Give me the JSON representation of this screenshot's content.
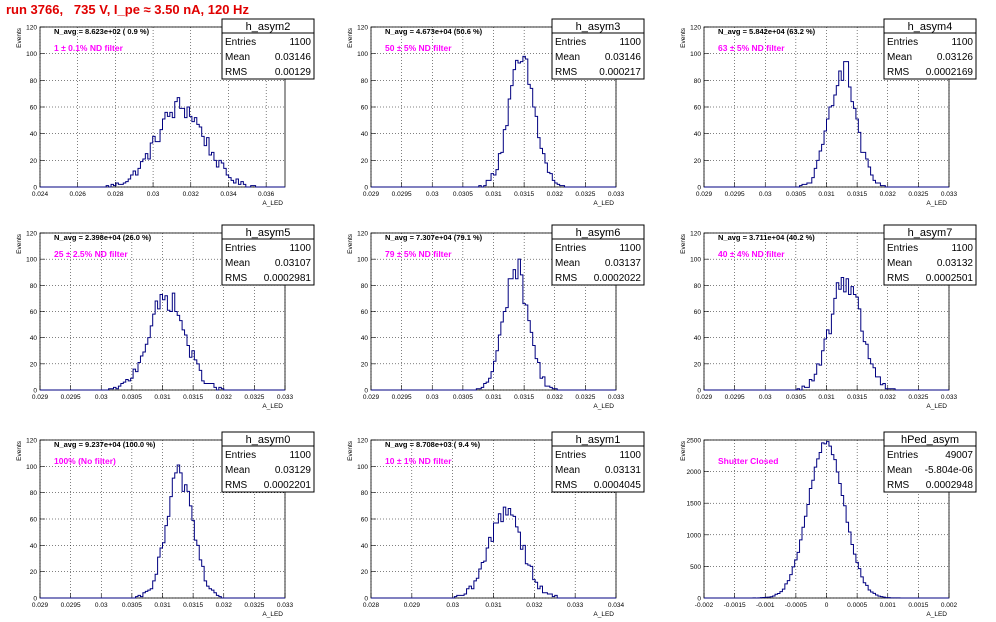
{
  "run_title": "run 3766,   735 V, I_pe ≈ 3.50 nA, 120 Hz",
  "colors": {
    "hist_line": "#000080",
    "magenta": "#ff00ff",
    "title_red": "#e00000",
    "grid": "#000000"
  },
  "common": {
    "ylabel": "Events",
    "xlabel": "A_LED",
    "stats_entries_label": "Entries",
    "stats_mean_label": "Mean",
    "stats_rms_label": "RMS"
  },
  "chart_data": [
    {
      "type": "histogram",
      "hist_name": "h_asym2",
      "navg_text": "N_avg = 8.623e+02 ( 0.9 %)",
      "filter_text": "1 ± 0.1% ND filter",
      "stats": {
        "entries": "1100",
        "mean": "0.03146",
        "rms": "0.00129"
      },
      "xlim": [
        0.024,
        0.037
      ],
      "ylim": [
        0,
        120
      ],
      "xticks": [
        "0.024",
        "0.026",
        "0.028",
        "0.03",
        "0.032",
        "0.034",
        "0.036"
      ],
      "yticks": [
        "0",
        "20",
        "40",
        "60",
        "80",
        "100",
        "120"
      ],
      "shape": {
        "mean": 0.03146,
        "rms": 0.00129,
        "peak": 60
      }
    },
    {
      "type": "histogram",
      "hist_name": "h_asym3",
      "navg_text": "N_avg = 4.673e+04 (50.6 %)",
      "filter_text": "50 ± 5% ND filter",
      "stats": {
        "entries": "1100",
        "mean": "0.03146",
        "rms": "0.000217"
      },
      "xlim": [
        0.029,
        0.033
      ],
      "ylim": [
        0,
        120
      ],
      "xticks": [
        "0.029",
        "0.0295",
        "0.03",
        "0.0305",
        "0.031",
        "0.0315",
        "0.032",
        "0.0325",
        "0.033"
      ],
      "yticks": [
        "0",
        "20",
        "40",
        "60",
        "80",
        "100",
        "120"
      ],
      "shape": {
        "mean": 0.03146,
        "rms": 0.000217,
        "peak": 93
      }
    },
    {
      "type": "histogram",
      "hist_name": "h_asym4",
      "navg_text": "N_avg = 5.842e+04 (63.2 %)",
      "filter_text": "63 ± 5% ND filter",
      "stats": {
        "entries": "1100",
        "mean": "0.03126",
        "rms": "0.0002169"
      },
      "xlim": [
        0.029,
        0.033
      ],
      "ylim": [
        0,
        120
      ],
      "xticks": [
        "0.029",
        "0.0295",
        "0.03",
        "0.0305",
        "0.031",
        "0.0315",
        "0.032",
        "0.0325",
        "0.033"
      ],
      "yticks": [
        "0",
        "20",
        "40",
        "60",
        "80",
        "100",
        "120"
      ],
      "shape": {
        "mean": 0.03126,
        "rms": 0.0002169,
        "peak": 90
      }
    },
    {
      "type": "histogram",
      "hist_name": "h_asym5",
      "navg_text": "N_avg = 2.398e+04 (26.0 %)",
      "filter_text": "25 ± 2.5% ND filter",
      "stats": {
        "entries": "1100",
        "mean": "0.03107",
        "rms": "0.0002981"
      },
      "xlim": [
        0.029,
        0.033
      ],
      "ylim": [
        0,
        120
      ],
      "xticks": [
        "0.029",
        "0.0295",
        "0.03",
        "0.0305",
        "0.031",
        "0.0315",
        "0.032",
        "0.0325",
        "0.033"
      ],
      "yticks": [
        "0",
        "20",
        "40",
        "60",
        "80",
        "100",
        "120"
      ],
      "shape": {
        "mean": 0.03107,
        "rms": 0.0002981,
        "peak": 70
      }
    },
    {
      "type": "histogram",
      "hist_name": "h_asym6",
      "navg_text": "N_avg = 7.307e+04 (79.1 %)",
      "filter_text": "79 ± 5% ND filter",
      "stats": {
        "entries": "1100",
        "mean": "0.03137",
        "rms": "0.0002022"
      },
      "xlim": [
        0.029,
        0.033
      ],
      "ylim": [
        0,
        120
      ],
      "xticks": [
        "0.029",
        "0.0295",
        "0.03",
        "0.0305",
        "0.031",
        "0.0315",
        "0.032",
        "0.0325",
        "0.033"
      ],
      "yticks": [
        "0",
        "20",
        "40",
        "60",
        "80",
        "100",
        "120"
      ],
      "shape": {
        "mean": 0.03137,
        "rms": 0.0002022,
        "peak": 93
      }
    },
    {
      "type": "histogram",
      "hist_name": "h_asym7",
      "navg_text": "N_avg = 3.711e+04 (40.2 %)",
      "filter_text": "40 ± 4% ND filter",
      "stats": {
        "entries": "1100",
        "mean": "0.03132",
        "rms": "0.0002501"
      },
      "xlim": [
        0.029,
        0.033
      ],
      "ylim": [
        0,
        120
      ],
      "xticks": [
        "0.029",
        "0.0295",
        "0.03",
        "0.0305",
        "0.031",
        "0.0315",
        "0.032",
        "0.0325",
        "0.033"
      ],
      "yticks": [
        "0",
        "20",
        "40",
        "60",
        "80",
        "100",
        "120"
      ],
      "shape": {
        "mean": 0.03132,
        "rms": 0.0002501,
        "peak": 85
      }
    },
    {
      "type": "histogram",
      "hist_name": "h_asym0",
      "navg_text": "N_avg = 9.237e+04 (100.0 %)",
      "filter_text": "100% (No filter)",
      "stats": {
        "entries": "1100",
        "mean": "0.03129",
        "rms": "0.0002201"
      },
      "xlim": [
        0.029,
        0.033
      ],
      "ylim": [
        0,
        120
      ],
      "xticks": [
        "0.029",
        "0.0295",
        "0.03",
        "0.0305",
        "0.031",
        "0.0315",
        "0.032",
        "0.0325",
        "0.033"
      ],
      "yticks": [
        "0",
        "20",
        "40",
        "60",
        "80",
        "100",
        "120"
      ],
      "shape": {
        "mean": 0.03129,
        "rms": 0.0002201,
        "peak": 93
      }
    },
    {
      "type": "histogram",
      "hist_name": "h_asym1",
      "navg_text": "N_avg = 8.708e+03 ( 9.4 %)",
      "filter_text": "10 ± 1% ND filter",
      "stats": {
        "entries": "1100",
        "mean": "0.03131",
        "rms": "0.0004045"
      },
      "xlim": [
        0.028,
        0.034
      ],
      "ylim": [
        0,
        120
      ],
      "xticks": [
        "0.028",
        "0.029",
        "0.03",
        "0.031",
        "0.032",
        "0.033",
        "0.034"
      ],
      "yticks": [
        "0",
        "20",
        "40",
        "60",
        "80",
        "100",
        "120"
      ],
      "shape": {
        "mean": 0.03131,
        "rms": 0.0004045,
        "peak": 68
      }
    },
    {
      "type": "histogram",
      "hist_name": "hPed_asym",
      "navg_text": "",
      "filter_text": "Shutter Closed",
      "stats": {
        "entries": "49007",
        "mean": "-5.804e-06",
        "rms": "0.0002948"
      },
      "xlim": [
        -0.002,
        0.002
      ],
      "ylim": [
        0,
        2500
      ],
      "xticks": [
        "-0.002",
        "-0.0015",
        "-0.001",
        "-0.0005",
        "0",
        "0.0005",
        "0.001",
        "0.0015",
        "0.002"
      ],
      "yticks": [
        "0",
        "500",
        "1000",
        "1500",
        "2000",
        "2500"
      ],
      "shape": {
        "mean": -5.804e-06,
        "rms": 0.0002948,
        "peak": 2450
      }
    }
  ]
}
